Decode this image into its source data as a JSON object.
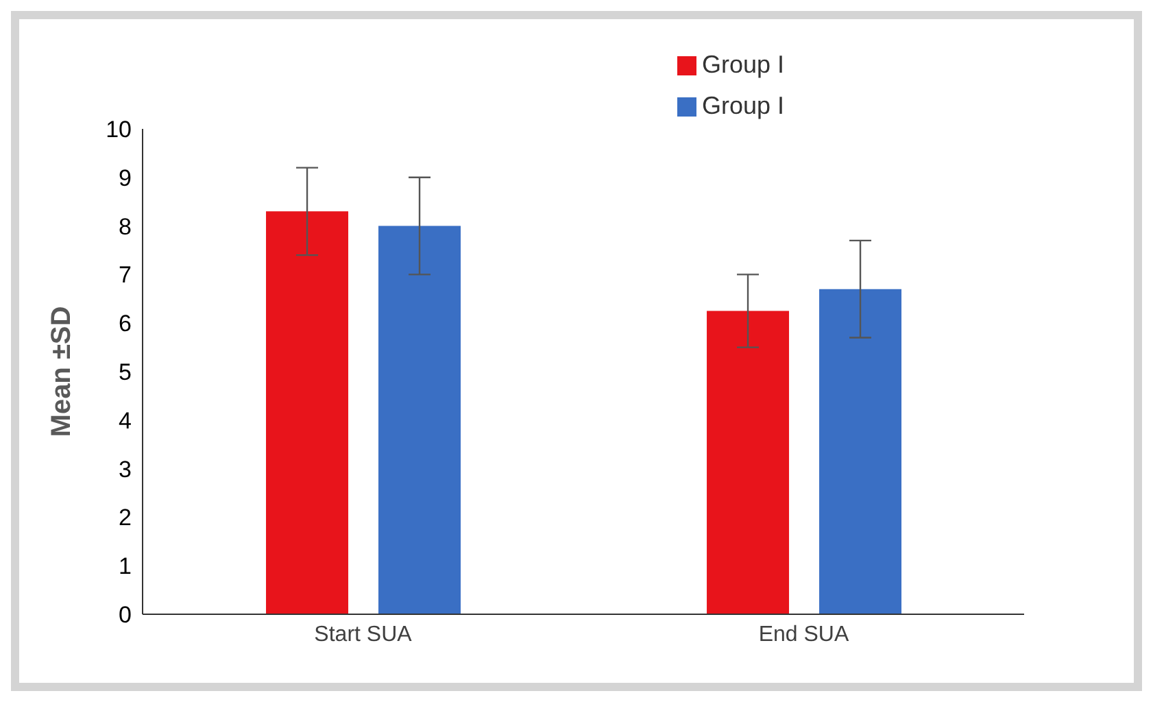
{
  "chart_data": {
    "type": "bar",
    "ylabel": "Mean ±SD",
    "categories": [
      "Start SUA",
      "End SUA"
    ],
    "series": [
      {
        "name": "Group I",
        "color": "#e8141b",
        "values": [
          8.3,
          6.25
        ],
        "errors": [
          0.9,
          0.75
        ]
      },
      {
        "name": "Group I",
        "color": "#3a6fc4",
        "values": [
          8.0,
          6.7
        ],
        "errors": [
          1.0,
          1.0
        ]
      }
    ],
    "ylim": [
      0,
      10
    ],
    "yticks": [
      0,
      1,
      2,
      3,
      4,
      5,
      6,
      7,
      8,
      9,
      10
    ],
    "grid": false,
    "legend": "top"
  }
}
